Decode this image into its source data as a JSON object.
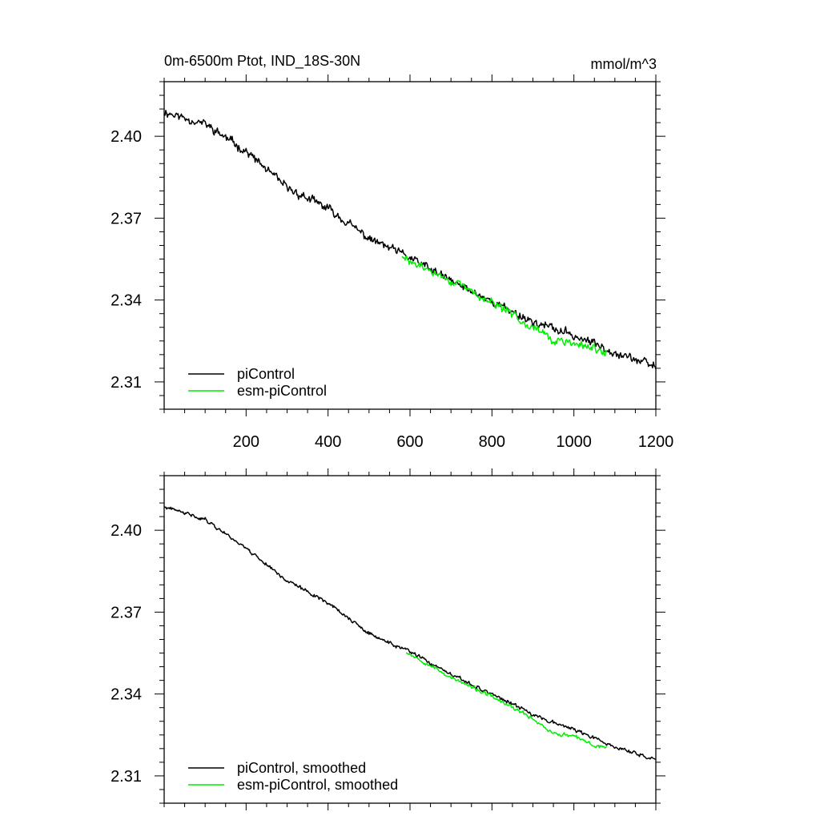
{
  "chart_data": [
    {
      "type": "line",
      "title_left": "0m-6500m Ptot, IND_18S-30N",
      "title_right": "mmol/m^3",
      "xlim": [
        0,
        1200
      ],
      "ylim": [
        2.3,
        2.42
      ],
      "x_ticks": [
        200,
        400,
        600,
        800,
        1000,
        1200
      ],
      "y_ticks": [
        2.31,
        2.34,
        2.37,
        2.4
      ],
      "x_tick_labels": [
        "200",
        "400",
        "600",
        "800",
        "1000",
        "1200"
      ],
      "y_tick_labels": [
        "2.31",
        "2.34",
        "2.37",
        "2.40"
      ],
      "legend_position": "bottom-left",
      "series": [
        {
          "name": "piControl",
          "color": "#000000",
          "noise": 0.0016,
          "seed": 11,
          "points": [
            [
              0,
              2.409
            ],
            [
              100,
              2.4045
            ],
            [
              200,
              2.3945
            ],
            [
              300,
              2.381
            ],
            [
              400,
              2.3735
            ],
            [
              500,
              2.3625
            ],
            [
              600,
              2.3555
            ],
            [
              700,
              2.347
            ],
            [
              800,
              2.3395
            ],
            [
              900,
              2.332
            ],
            [
              1000,
              2.327
            ],
            [
              1100,
              2.321
            ],
            [
              1200,
              2.3155
            ]
          ]
        },
        {
          "name": "esm-piControl",
          "color": "#00ee00",
          "noise": 0.0016,
          "seed": 29,
          "points": [
            [
              580,
              2.3555
            ],
            [
              650,
              2.3505
            ],
            [
              700,
              2.347
            ],
            [
              800,
              2.339
            ],
            [
              850,
              2.3345
            ],
            [
              900,
              2.3305
            ],
            [
              950,
              2.325
            ],
            [
              1000,
              2.324
            ],
            [
              1050,
              2.322
            ],
            [
              1080,
              2.321
            ]
          ]
        }
      ]
    },
    {
      "type": "line",
      "xlim": [
        0,
        1200
      ],
      "ylim": [
        2.3,
        2.42
      ],
      "x_ticks": [
        200,
        400,
        600,
        800,
        1000,
        1200
      ],
      "y_ticks": [
        2.31,
        2.34,
        2.37,
        2.4
      ],
      "y_tick_labels": [
        "2.31",
        "2.34",
        "2.37",
        "2.40"
      ],
      "legend_position": "bottom-left",
      "series": [
        {
          "name": "piControl, smoothed",
          "color": "#000000",
          "noise": 0.0007,
          "seed": 41,
          "points": [
            [
              0,
              2.4085
            ],
            [
              100,
              2.404
            ],
            [
              200,
              2.3935
            ],
            [
              300,
              2.3815
            ],
            [
              400,
              2.3735
            ],
            [
              500,
              2.362
            ],
            [
              600,
              2.3555
            ],
            [
              700,
              2.347
            ],
            [
              800,
              2.34
            ],
            [
              900,
              2.3325
            ],
            [
              1000,
              2.327
            ],
            [
              1100,
              2.3205
            ],
            [
              1200,
              2.316
            ]
          ]
        },
        {
          "name": "esm-piControl, smoothed",
          "color": "#00ee00",
          "noise": 0.0007,
          "seed": 53,
          "points": [
            [
              590,
              2.3555
            ],
            [
              650,
              2.3505
            ],
            [
              700,
              2.346
            ],
            [
              800,
              2.339
            ],
            [
              850,
              2.335
            ],
            [
              900,
              2.331
            ],
            [
              950,
              2.3255
            ],
            [
              1000,
              2.3245
            ],
            [
              1050,
              2.321
            ],
            [
              1080,
              2.3205
            ]
          ]
        }
      ]
    }
  ]
}
